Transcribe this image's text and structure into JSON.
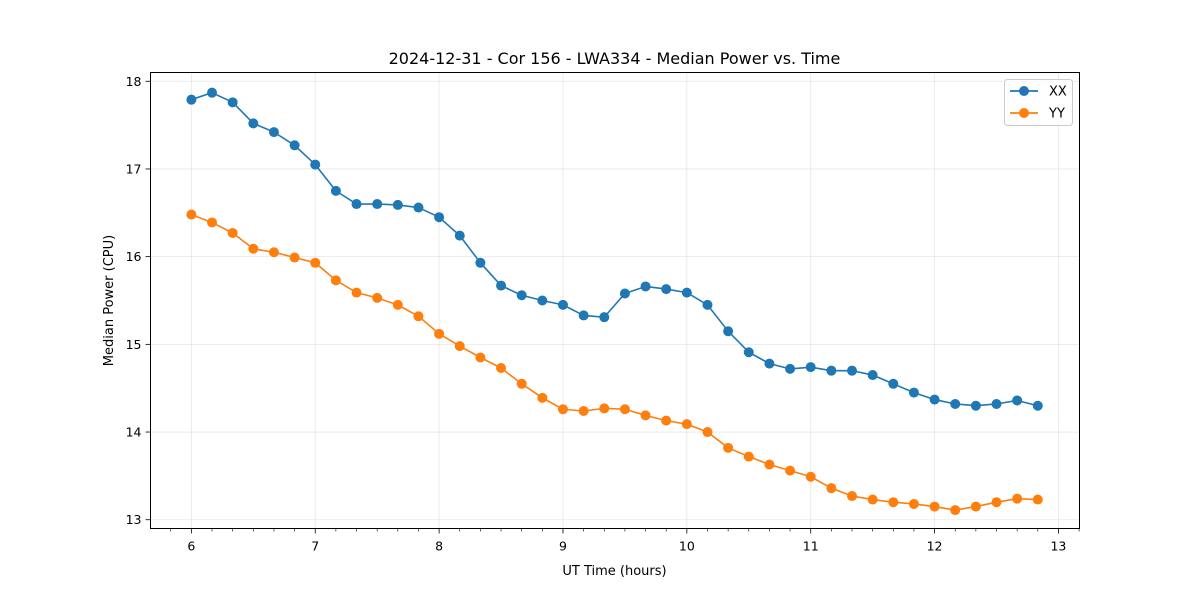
{
  "chart_data": {
    "type": "line",
    "title": "2024-12-31 - Cor 156 - LWA334 - Median Power vs. Time",
    "xlabel": "UT Time (hours)",
    "ylabel": "Median Power (CPU)",
    "xlim": [
      5.67,
      13.17
    ],
    "ylim": [
      12.9,
      18.1
    ],
    "xticks": [
      6,
      7,
      8,
      9,
      10,
      11,
      12,
      13
    ],
    "yticks": [
      13,
      14,
      15,
      16,
      17,
      18
    ],
    "grid": true,
    "legend_position": "top-right",
    "x": [
      6.0,
      6.1667,
      6.3333,
      6.5,
      6.6667,
      6.8333,
      7.0,
      7.1667,
      7.3333,
      7.5,
      7.6667,
      7.8333,
      8.0,
      8.1667,
      8.3333,
      8.5,
      8.6667,
      8.8333,
      9.0,
      9.1667,
      9.3333,
      9.5,
      9.6667,
      9.8333,
      10.0,
      10.1667,
      10.3333,
      10.5,
      10.6667,
      10.8333,
      11.0,
      11.1667,
      11.3333,
      11.5,
      11.6667,
      11.8333,
      12.0,
      12.1667,
      12.3333,
      12.5,
      12.6667,
      12.8333
    ],
    "series": [
      {
        "name": "XX",
        "color": "#1f77b4",
        "values": [
          17.79,
          17.87,
          17.76,
          17.52,
          17.42,
          17.27,
          17.05,
          16.75,
          16.6,
          16.6,
          16.59,
          16.56,
          16.45,
          16.24,
          15.93,
          15.67,
          15.56,
          15.5,
          15.45,
          15.33,
          15.31,
          15.58,
          15.66,
          15.63,
          15.59,
          15.45,
          15.15,
          14.91,
          14.78,
          14.72,
          14.74,
          14.7,
          14.7,
          14.65,
          14.55,
          14.45,
          14.37,
          14.32,
          14.3,
          14.32,
          14.36,
          14.3
        ]
      },
      {
        "name": "YY",
        "color": "#ff7f0e",
        "values": [
          16.48,
          16.39,
          16.27,
          16.09,
          16.05,
          15.99,
          15.93,
          15.73,
          15.59,
          15.53,
          15.45,
          15.32,
          15.12,
          14.98,
          14.85,
          14.73,
          14.55,
          14.39,
          14.26,
          14.24,
          14.27,
          14.26,
          14.19,
          14.13,
          14.09,
          14.0,
          13.82,
          13.72,
          13.63,
          13.56,
          13.49,
          13.36,
          13.27,
          13.23,
          13.2,
          13.18,
          13.15,
          13.11,
          13.15,
          13.2,
          13.24,
          13.23
        ]
      }
    ]
  }
}
